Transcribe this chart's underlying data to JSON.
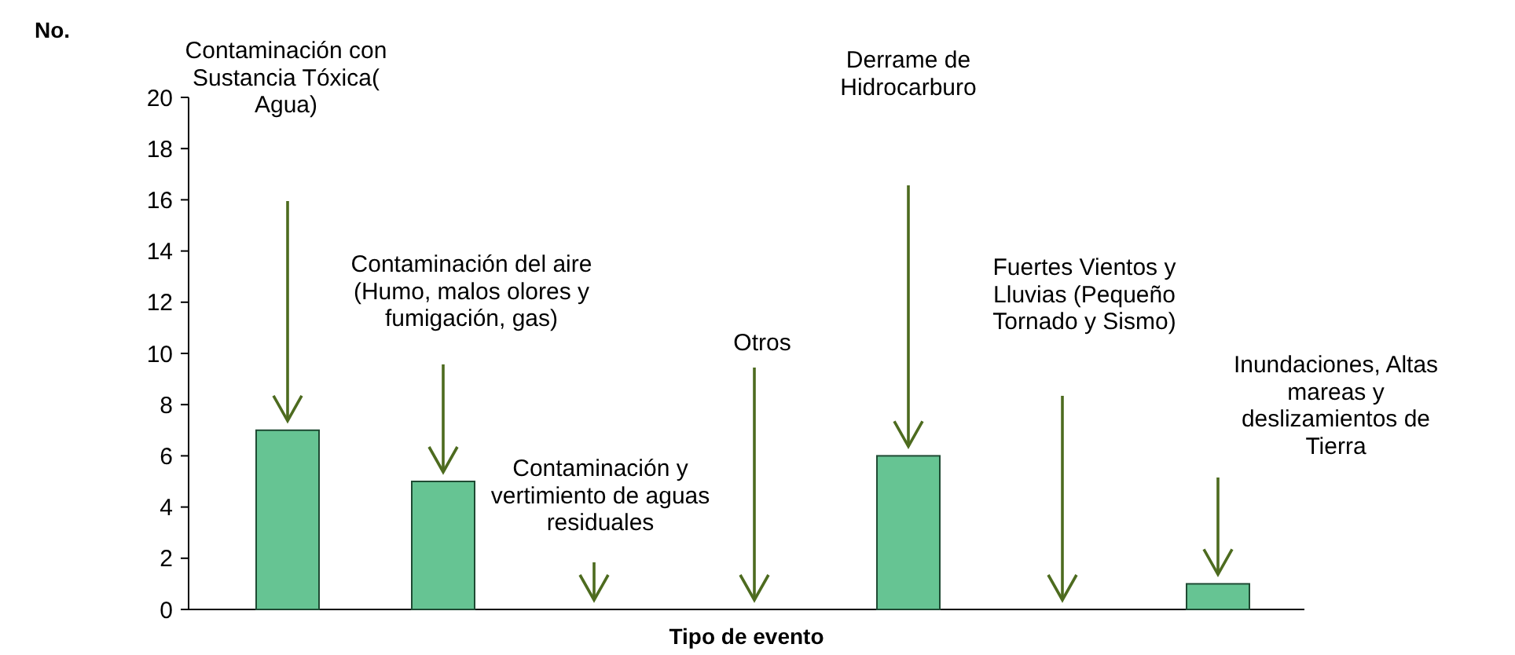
{
  "chart_data": {
    "type": "bar",
    "ylabel": "No.",
    "xlabel": "Tipo de evento",
    "categories": [
      null,
      null,
      null,
      null,
      null,
      null,
      null
    ],
    "annotations": [
      "Contaminación con Sustancia Tóxica( Agua)",
      "Contaminación del aire (Humo, malos olores y fumigación, gas)",
      "Contaminación  y vertimiento de aguas residuales",
      "Otros",
      "Derrame de Hidrocarburo",
      "Fuertes Vientos y Lluvias  (Pequeño Tornado y Sismo)",
      "Inundaciones, Altas mareas  y deslizamientos de Tierra"
    ],
    "values": [
      7,
      5,
      0,
      0,
      6,
      0,
      1
    ],
    "color": "#66c493",
    "ylim": [
      0,
      20
    ],
    "yticks": [
      0,
      2,
      4,
      6,
      8,
      10,
      12,
      14,
      16,
      18,
      20
    ],
    "grid": false
  }
}
